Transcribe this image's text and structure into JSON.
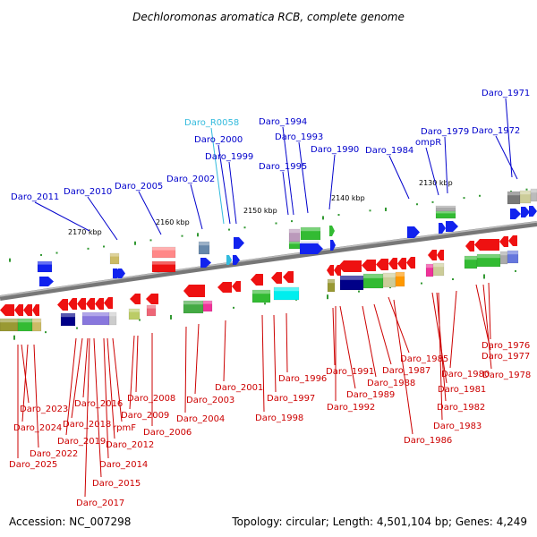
{
  "title": "Dechloromonas aromatica RCB, complete genome",
  "footer": {
    "accession": "Accession: NC_007298",
    "topology": "Topology: circular; Length: 4,501,104 bp; Genes: 4,249"
  },
  "colors": {
    "top_label": "#0000cc",
    "top_label_rna": "#33bbdd",
    "bottom_label": "#cc0000",
    "backbone": "#888888"
  },
  "ticks": [
    "2170 kbp",
    "2160 kbp",
    "2150 kbp",
    "2140 kbp",
    "2130 kbp"
  ],
  "top_labels": [
    "Daro_2011",
    "Daro_2010",
    "Daro_2005",
    "Daro_2002",
    "Daro_R0058",
    "Daro_2000",
    "Daro_1999",
    "Daro_1994",
    "Daro_1993",
    "Daro_1995",
    "Daro_1990",
    "Daro_1984",
    "ompR",
    "Daro_1979",
    "Daro_1972",
    "Daro_1971"
  ],
  "bottom_labels": [
    "Daro_2023",
    "Daro_2024",
    "Daro_2022",
    "Daro_2025",
    "Daro_2016",
    "Daro_2018",
    "Daro_2019",
    "Daro_2017",
    "Daro_2015",
    "Daro_2014",
    "rpmF",
    "Daro_2012",
    "Daro_2009",
    "Daro_2008",
    "Daro_2006",
    "Daro_2004",
    "Daro_2003",
    "Daro_2001",
    "Daro_1997",
    "Daro_1998",
    "Daro_1996",
    "Daro_1991",
    "Daro_1992",
    "Daro_1989",
    "Daro_1988",
    "Daro_1987",
    "Daro_1986",
    "Daro_1985",
    "Daro_1983",
    "Daro_1982",
    "Daro_1981",
    "Daro_1980",
    "Daro_1978",
    "Daro_1977",
    "Daro_1976"
  ]
}
